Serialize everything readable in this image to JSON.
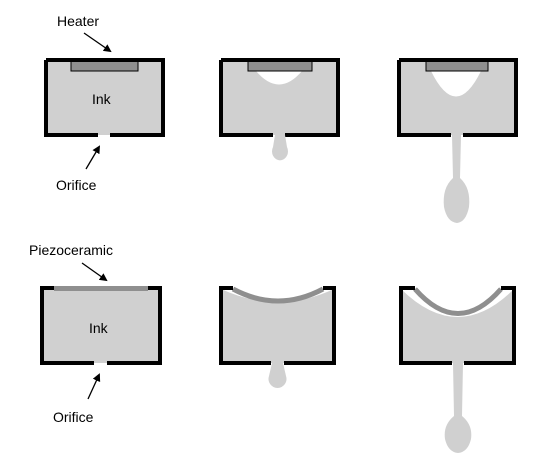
{
  "labels": {
    "heater": "Heater",
    "ink_top": "Ink",
    "orifice_top": "Orifice",
    "piezoceramic": "Piezoceramic",
    "ink_bottom": "Ink",
    "orifice_bottom": "Orifice"
  },
  "colors": {
    "ink": "#d0d0d0",
    "wall": "#000000",
    "heater_element": "#8f8f8f",
    "piezo_element": "#8f8f8f",
    "bubble": "#ffffff",
    "background": "#ffffff"
  },
  "rows": [
    {
      "mechanism": "thermal",
      "stages": [
        "idle",
        "bubble-forming",
        "droplet-ejected"
      ]
    },
    {
      "mechanism": "piezoelectric",
      "stages": [
        "idle",
        "membrane-flexing",
        "droplet-ejected"
      ]
    }
  ]
}
